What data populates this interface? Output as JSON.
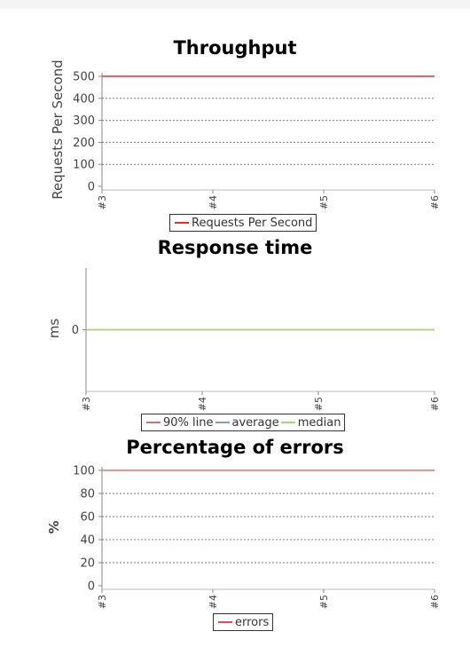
{
  "chart_data": [
    {
      "type": "line",
      "title": "Throughput",
      "xlabel": "",
      "ylabel": "Requests Per Second",
      "categories": [
        "#3",
        "#4",
        "#5",
        "#6"
      ],
      "ylim": [
        0,
        500
      ],
      "yticks": [
        "0",
        "100",
        "200",
        "300",
        "400",
        "500"
      ],
      "grid": true,
      "legend_position": "bottom",
      "series": [
        {
          "name": "Requests Per Second",
          "color": "#e03030",
          "values": [
            500,
            500,
            500,
            500
          ]
        }
      ]
    },
    {
      "type": "line",
      "title": "Response time",
      "xlabel": "",
      "ylabel": "ms",
      "categories": [
        "#3",
        "#4",
        "#5",
        "#6"
      ],
      "ylim": [
        -1,
        1
      ],
      "yticks": [
        "0"
      ],
      "grid": false,
      "legend_position": "bottom",
      "series": [
        {
          "name": "90% line",
          "color": "#e07070",
          "values": [
            0,
            0,
            0,
            0
          ]
        },
        {
          "name": "average",
          "color": "#80a0c8",
          "values": [
            0,
            0,
            0,
            0
          ]
        },
        {
          "name": "median",
          "color": "#99dd66",
          "values": [
            0,
            0,
            0,
            0
          ]
        }
      ]
    },
    {
      "type": "line",
      "title": "Percentage of errors",
      "xlabel": "",
      "ylabel": "%",
      "categories": [
        "#3",
        "#4",
        "#5",
        "#6"
      ],
      "ylim": [
        0,
        100
      ],
      "yticks": [
        "0",
        "20",
        "40",
        "60",
        "80",
        "100"
      ],
      "grid": true,
      "legend_position": "bottom",
      "series": [
        {
          "name": "errors",
          "color": "#e05050",
          "values": [
            100,
            100,
            100,
            100
          ]
        }
      ]
    }
  ]
}
